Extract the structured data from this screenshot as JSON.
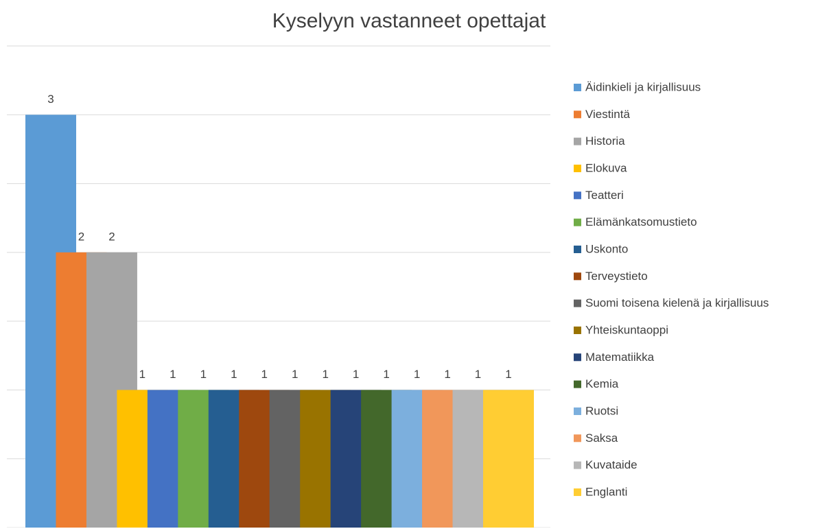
{
  "chart_data": {
    "type": "bar",
    "title": "Kyselyyn vastanneet opettajat",
    "categories": [
      null
    ],
    "series": [
      {
        "name": "Äidinkieli ja kirjallisuus",
        "color": "#5b9bd5",
        "values": [
          3
        ]
      },
      {
        "name": "Viestintä",
        "color": "#ed7d31",
        "values": [
          2
        ]
      },
      {
        "name": "Historia",
        "color": "#a5a5a5",
        "values": [
          2
        ]
      },
      {
        "name": "Elokuva",
        "color": "#ffc000",
        "values": [
          1
        ]
      },
      {
        "name": "Teatteri",
        "color": "#4472c4",
        "values": [
          1
        ]
      },
      {
        "name": "Elämänkatsomustieto",
        "color": "#70ad47",
        "values": [
          1
        ]
      },
      {
        "name": "Uskonto",
        "color": "#255e91",
        "values": [
          1
        ]
      },
      {
        "name": "Terveystieto",
        "color": "#9e480e",
        "values": [
          1
        ]
      },
      {
        "name": "Suomi toisena kielenä ja kirjallisuus",
        "color": "#636363",
        "values": [
          1
        ]
      },
      {
        "name": "Yhteiskuntaoppi",
        "color": "#997300",
        "values": [
          1
        ]
      },
      {
        "name": "Matematiikka",
        "color": "#264478",
        "values": [
          1
        ]
      },
      {
        "name": "Kemia",
        "color": "#43682b",
        "values": [
          1
        ]
      },
      {
        "name": "Ruotsi",
        "color": "#7cafdd",
        "values": [
          1
        ]
      },
      {
        "name": "Saksa",
        "color": "#f1975a",
        "values": [
          1
        ]
      },
      {
        "name": "Kuvataide",
        "color": "#b7b7b7",
        "values": [
          1
        ]
      },
      {
        "name": "Englanti",
        "color": "#ffcd33",
        "values": [
          1
        ]
      }
    ],
    "ylim": [
      0,
      3.5
    ],
    "yticks": [
      0,
      0.5,
      1,
      1.5,
      2,
      2.5,
      3,
      3.5
    ],
    "grid": true,
    "legend": "right"
  }
}
